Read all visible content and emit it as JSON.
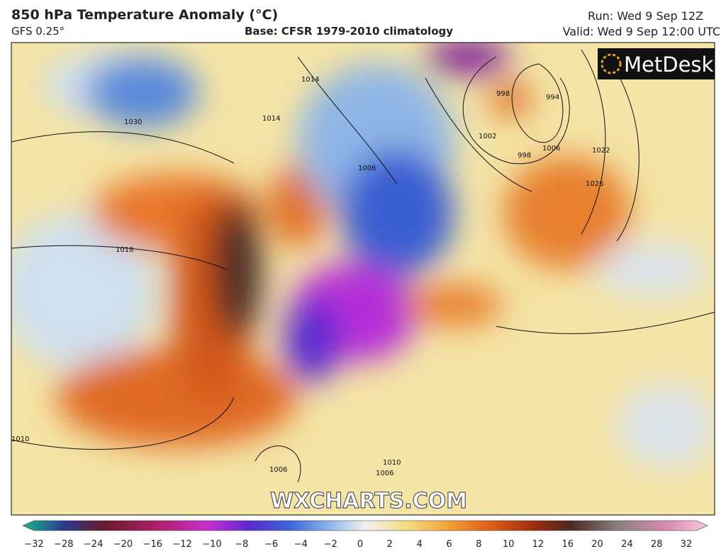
{
  "header": {
    "title": "850 hPa Temperature Anomaly (°C)",
    "model": "GFS 0.25°",
    "base": "Base: CFSR 1979-2010 climatology",
    "run": "Run: Wed 9 Sep 12Z",
    "valid": "Valid: Wed 9 Sep 12:00 UTC"
  },
  "logo": "MetDesk",
  "watermark": "WXCHARTS.COM",
  "isobar_labels": [
    "1030",
    "1014",
    "1014",
    "1006",
    "1002",
    "998",
    "994",
    "1006",
    "998",
    "1022",
    "1026",
    "1018",
    "1010",
    "1006",
    "1010",
    "1006"
  ],
  "colorbar": {
    "labels": [
      "−32",
      "−28",
      "−24",
      "−20",
      "−16",
      "−12",
      "−10",
      "−8",
      "−6",
      "−4",
      "−2",
      "0",
      "2",
      "4",
      "6",
      "8",
      "10",
      "12",
      "16",
      "20",
      "24",
      "28",
      "32"
    ]
  }
}
